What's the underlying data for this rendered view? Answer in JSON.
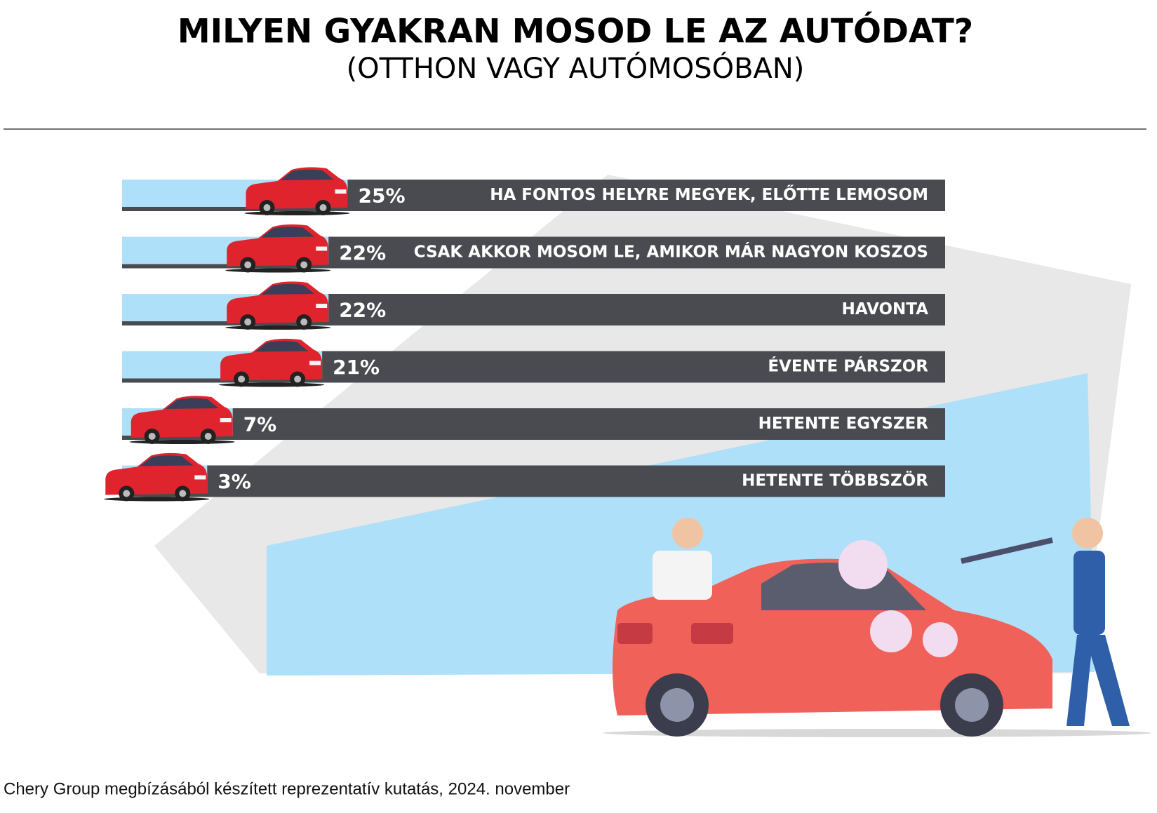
{
  "chart_data": {
    "type": "bar",
    "title": "MILYEN GYAKRAN MOSOD LE AZ AUTÓDAT?",
    "subtitle": "(OTTHON VAGY AUTÓMOSÓBAN)",
    "categories": [
      "HA FONTOS HELYRE MEGYEK, ELŐTTE LEMOSOM",
      "CSAK AKKOR MOSOM LE, AMIKOR MÁR NAGYON KOSZOS",
      "HAVONTA",
      "ÉVENTE PÁRSZOR",
      "HETENTE EGYSZER",
      "HETENTE TÖBBSZÖR"
    ],
    "values": [
      25,
      22,
      22,
      21,
      7,
      3
    ],
    "value_labels": [
      "25%",
      "22%",
      "22%",
      "21%",
      "7%",
      "3%"
    ],
    "color": "#aee0fa",
    "bar_color": "#4a4b50",
    "source": "Chery Group megbízásából készített reprezentatív kutatás, 2024. november"
  }
}
